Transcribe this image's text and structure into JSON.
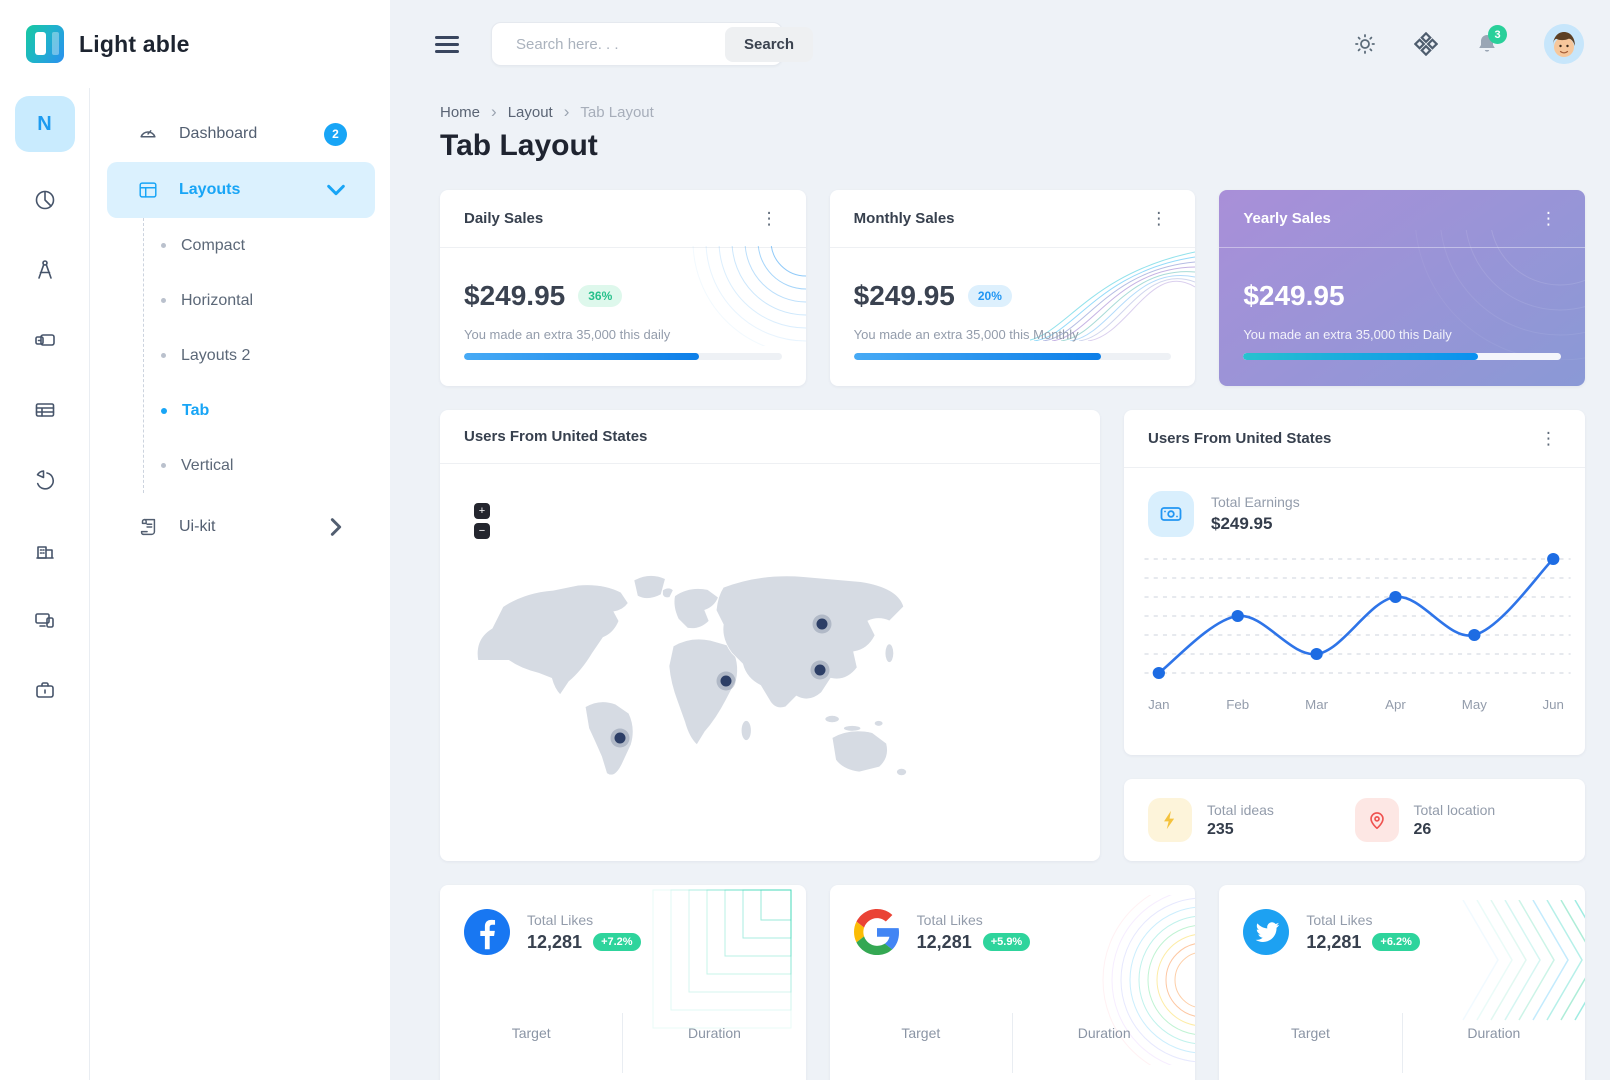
{
  "brand": {
    "name": "Light able",
    "rail_avatar": "N"
  },
  "header": {
    "search_placeholder": "Search here. . .",
    "search_button": "Search",
    "notification_count": "3"
  },
  "menu": {
    "dashboard": {
      "label": "Dashboard",
      "badge": "2"
    },
    "layouts": {
      "label": "Layouts"
    },
    "submenu": [
      {
        "label": "Compact"
      },
      {
        "label": "Horizontal"
      },
      {
        "label": "Layouts 2"
      },
      {
        "label": "Tab",
        "active": true
      },
      {
        "label": "Vertical"
      }
    ],
    "uikit": {
      "label": "Ui-kit"
    }
  },
  "breadcrumb": {
    "items": [
      "Home",
      "Layout",
      "Tab Layout"
    ]
  },
  "page": {
    "title": "Tab Layout"
  },
  "sales_cards": [
    {
      "title": "Daily Sales",
      "amount": "$249.95",
      "badge": "36%",
      "description": "You made an extra 35,000 this daily",
      "progress_pct": 74
    },
    {
      "title": "Monthly Sales",
      "amount": "$249.95",
      "badge": "20%",
      "description": "You made an extra 35,000 this Monthly",
      "progress_pct": 78
    },
    {
      "title": "Yearly Sales",
      "amount": "$249.95",
      "description": "You made an extra 35,000 this Daily",
      "progress_pct": 74
    }
  ],
  "map_card": {
    "title": "Users From United States",
    "zoom_in": "+",
    "zoom_out": "−",
    "markers": [
      {
        "region": "russia",
        "x": 79,
        "y": 31
      },
      {
        "region": "china",
        "x": 78.5,
        "y": 51
      },
      {
        "region": "egypt",
        "x": 58,
        "y": 56
      },
      {
        "region": "brazil",
        "x": 35,
        "y": 81
      }
    ]
  },
  "earnings_card": {
    "title": "Users From United States",
    "stat_label": "Total Earnings",
    "stat_value": "$249.95"
  },
  "chart_data": {
    "type": "line",
    "title": "Total Earnings trend",
    "x": [
      "Jan",
      "Feb",
      "Mar",
      "Apr",
      "May",
      "Jun"
    ],
    "values": [
      0,
      3,
      1,
      4,
      2,
      6
    ],
    "ylim": [
      0,
      6
    ],
    "gridlines": 7,
    "grid_style": "dashed-horizontal",
    "line_color": "#2e74e8",
    "point_color": "#1d6ce3",
    "legend_position": "none"
  },
  "totals_card": {
    "items": [
      {
        "label": "Total ideas",
        "value": "235"
      },
      {
        "label": "Total location",
        "value": "26"
      }
    ]
  },
  "social_cards": [
    {
      "network": "Facebook",
      "stat_label": "Total Likes",
      "value": "12,281",
      "badge": "+7.2%",
      "footer": [
        "Target",
        "Duration"
      ]
    },
    {
      "network": "Google",
      "stat_label": "Total Likes",
      "value": "12,281",
      "badge": "+5.9%",
      "footer": [
        "Target",
        "Duration"
      ]
    },
    {
      "network": "Twitter",
      "stat_label": "Total Likes",
      "value": "12,281",
      "badge": "+6.2%",
      "footer": [
        "Target",
        "Duration"
      ]
    }
  ],
  "colors": {
    "accent_blue": "#18a5f6",
    "success_green": "#2ed49c",
    "purple_gradient": [
      "#a98fd8",
      "#8a99d6"
    ],
    "facebook_blue": "#1877f2",
    "twitter_blue": "#1da1f2",
    "progress_blue": [
      "#47aaf5",
      "#0d7fe8"
    ]
  }
}
